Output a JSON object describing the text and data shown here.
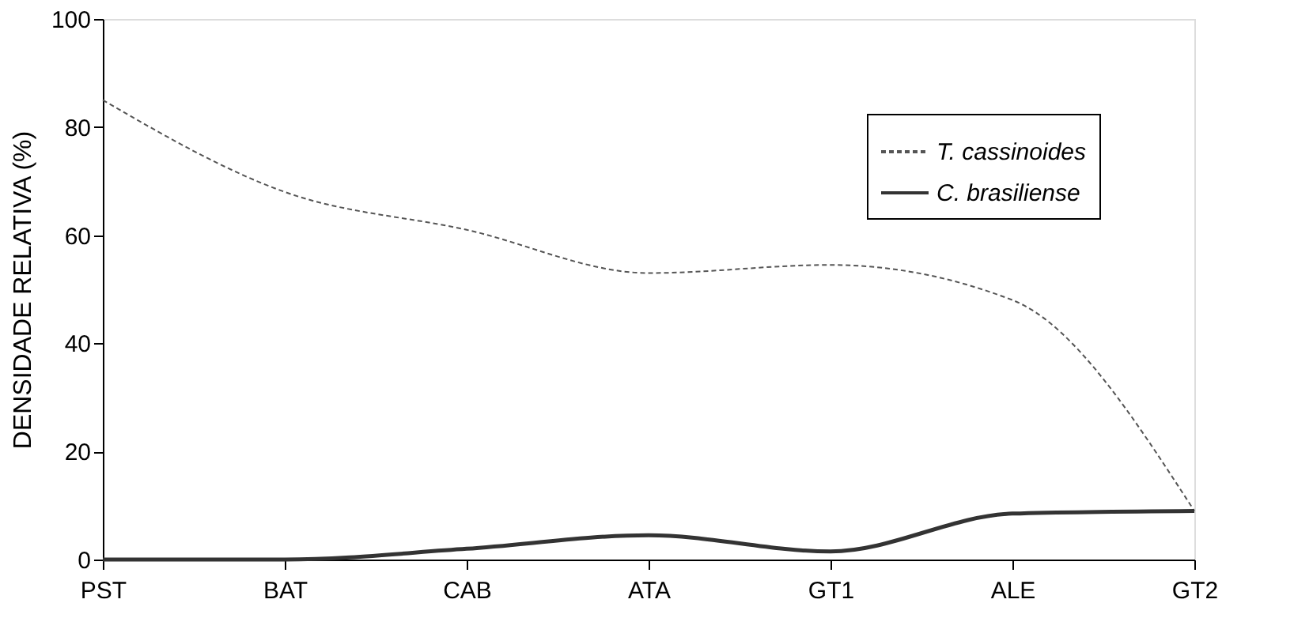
{
  "chart_data": {
    "type": "line",
    "ylabel": "DENSIDADE RELATIVA (%)",
    "categories": [
      "PST",
      "BAT",
      "CAB",
      "ATA",
      "GT1",
      "ALE",
      "GT2"
    ],
    "series": [
      {
        "name": "T. cassinoides",
        "color": "#555555",
        "line_style": "dashed",
        "values": [
          85,
          68,
          61,
          53,
          54.5,
          48,
          9
        ]
      },
      {
        "name": "C. brasiliense",
        "color": "#333333",
        "line_style": "solid",
        "values": [
          0,
          0,
          2,
          4.5,
          1.5,
          8.5,
          9
        ]
      }
    ],
    "ylim": [
      0,
      100
    ],
    "yticks": [
      0,
      20,
      40,
      60,
      80,
      100
    ],
    "grid": false,
    "legend": "top right",
    "marker": "none"
  }
}
